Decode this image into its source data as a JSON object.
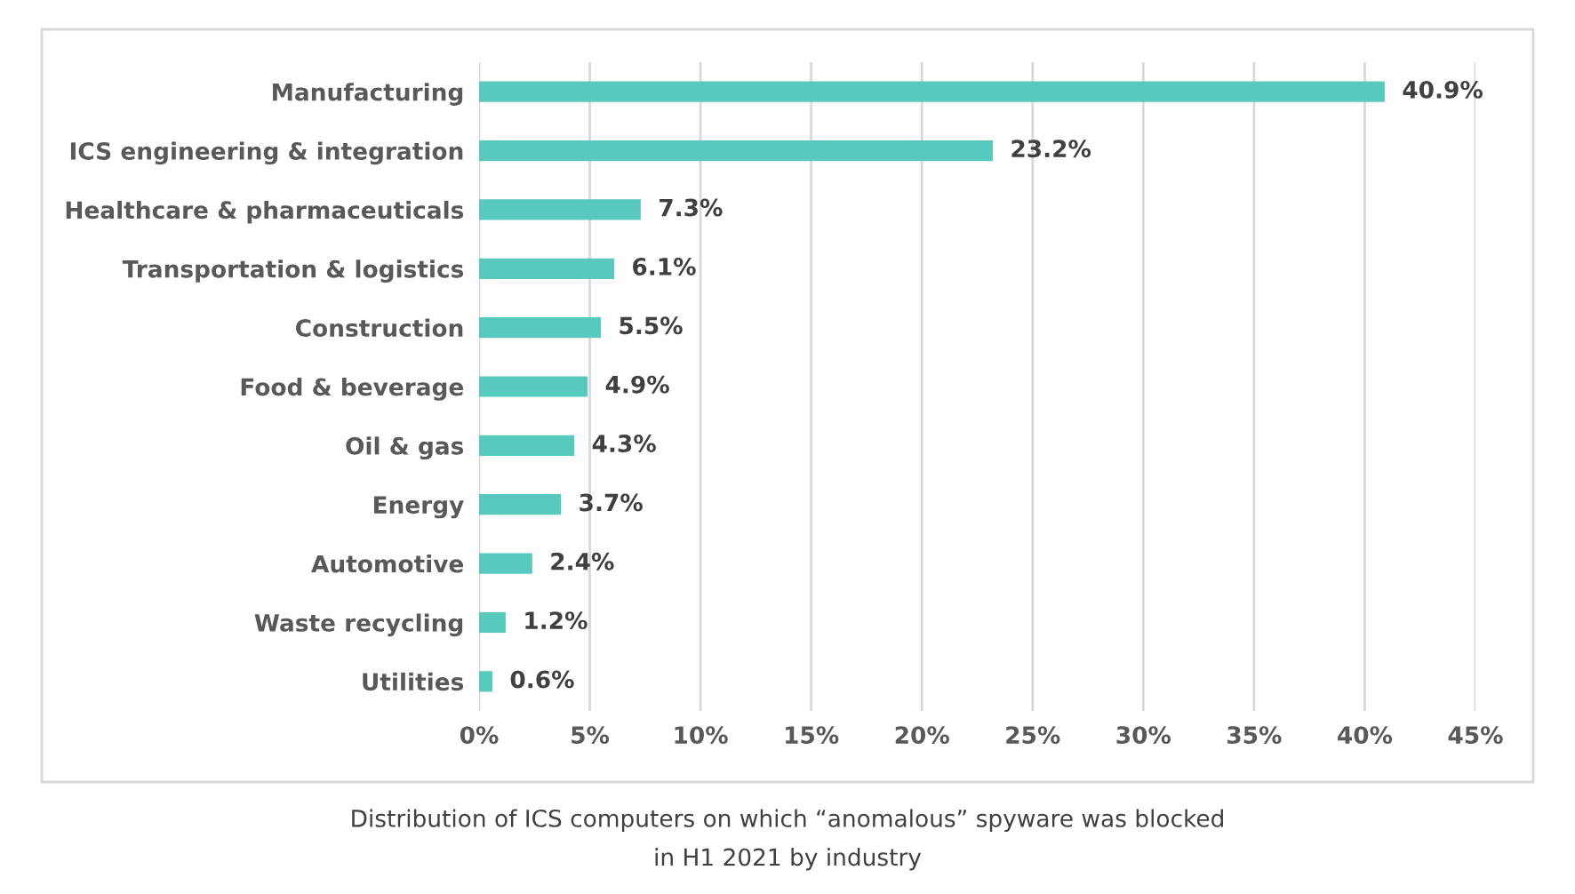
{
  "chart_data": {
    "type": "bar",
    "orientation": "horizontal",
    "title": "Distribution of ICS computers on which “anomalous” spyware was blocked\nin H1 2021 by industry",
    "categories": [
      "Manufacturing",
      "ICS engineering & integration",
      "Healthcare & pharmaceuticals",
      "Transportation & logistics",
      "Construction",
      "Food & beverage",
      "Oil & gas",
      "Energy",
      "Automotive",
      "Waste recycling",
      "Utilities"
    ],
    "values": [
      40.9,
      23.2,
      7.3,
      6.1,
      5.5,
      4.9,
      4.3,
      3.7,
      2.4,
      1.2,
      0.6
    ],
    "value_labels": [
      "40.9%",
      "23.2%",
      "7.3%",
      "6.1%",
      "5.5%",
      "4.9%",
      "4.3%",
      "3.7%",
      "2.4%",
      "1.2%",
      "0.6%"
    ],
    "color": "#57c9bd",
    "xlim": [
      0,
      45
    ],
    "xticks": [
      {
        "value": 0,
        "label": "0%"
      },
      {
        "value": 5,
        "label": "5%"
      },
      {
        "value": 10,
        "label": "10%"
      },
      {
        "value": 15,
        "label": "15%"
      },
      {
        "value": 20,
        "label": "20%"
      },
      {
        "value": 25,
        "label": "25%"
      },
      {
        "value": 30,
        "label": "30%"
      },
      {
        "value": 35,
        "label": "35%"
      },
      {
        "value": 40,
        "label": "40%"
      },
      {
        "value": 45,
        "label": "45%"
      }
    ],
    "grid": "x",
    "legend": false
  }
}
